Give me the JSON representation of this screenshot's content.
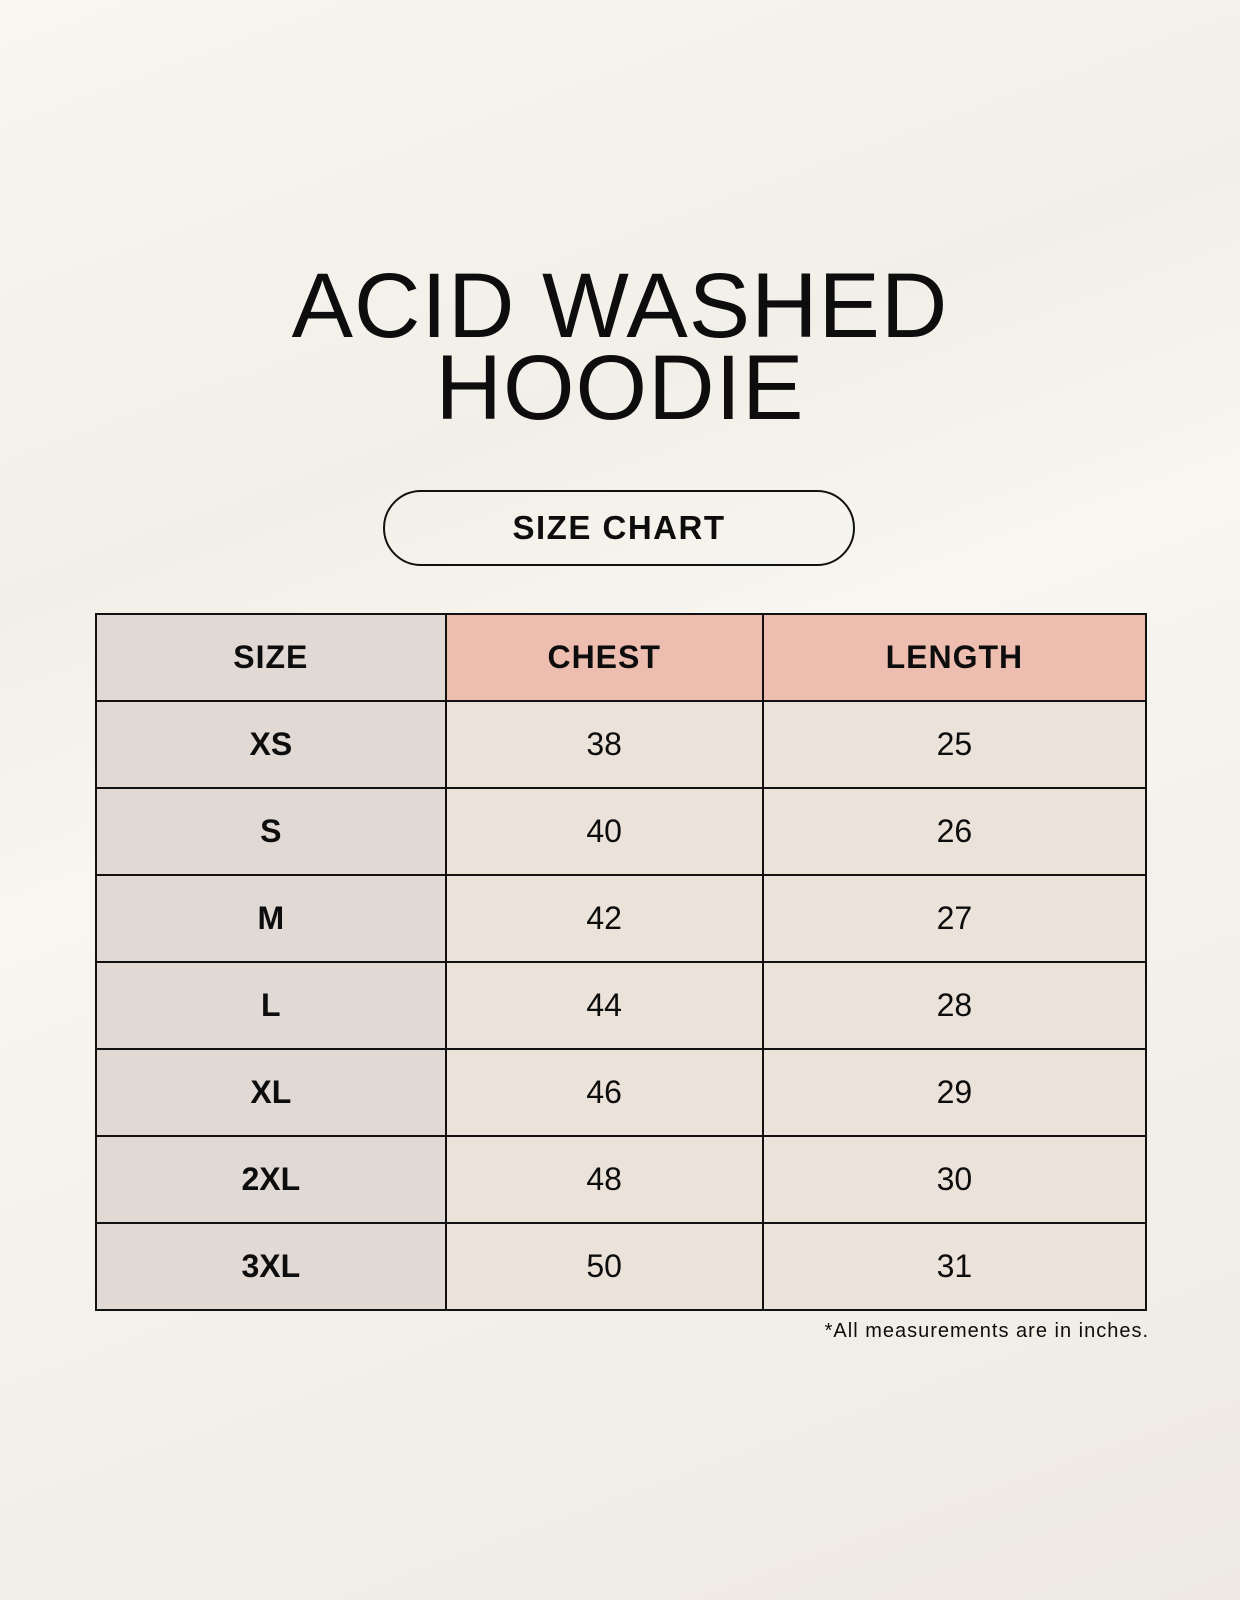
{
  "title_line1": "ACID WASHED",
  "title_line2": "HOODIE",
  "subtitle": "SIZE CHART",
  "table": {
    "headers": [
      "SIZE",
      "CHEST",
      "LENGTH"
    ],
    "rows": [
      [
        "XS",
        "38",
        "25"
      ],
      [
        "S",
        "40",
        "26"
      ],
      [
        "M",
        "42",
        "27"
      ],
      [
        "L",
        "44",
        "28"
      ],
      [
        "XL",
        "46",
        "29"
      ],
      [
        "2XL",
        "48",
        "30"
      ],
      [
        "3XL",
        "50",
        "31"
      ]
    ]
  },
  "footnote": "*All measurements are in inches.",
  "colors": {
    "size_column": "#e0d9d4",
    "header_accent": "#edbdb0",
    "cells": "#ebe3da"
  }
}
